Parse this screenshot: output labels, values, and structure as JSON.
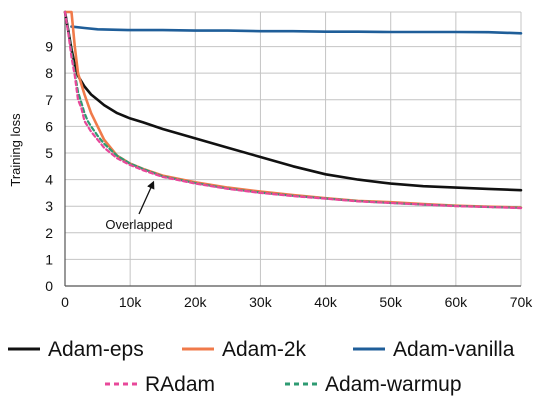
{
  "chart_data": {
    "type": "line",
    "title": "",
    "xlabel": "",
    "ylabel": "Training loss",
    "xlim": [
      0,
      70000
    ],
    "ylim": [
      0,
      10.3
    ],
    "x_ticks": [
      0,
      10000,
      20000,
      30000,
      40000,
      50000,
      60000,
      70000
    ],
    "x_tick_labels": [
      "0",
      "10k",
      "20k",
      "30k",
      "40k",
      "50k",
      "60k",
      "70k"
    ],
    "y_ticks": [
      0,
      1,
      2,
      3,
      4,
      5,
      6,
      7,
      8,
      9
    ],
    "y_tick_labels": [
      "0",
      "1",
      "2",
      "3",
      "4",
      "5",
      "6",
      "7",
      "8",
      "9"
    ],
    "grid": true,
    "legend_position": "bottom",
    "series": [
      {
        "name": "Adam-eps",
        "color": "#111111",
        "style": "solid",
        "x": [
          0,
          500,
          1000,
          1500,
          2000,
          3000,
          4000,
          5000,
          6000,
          8000,
          10000,
          12000,
          15000,
          20000,
          25000,
          30000,
          35000,
          40000,
          45000,
          50000,
          55000,
          60000,
          65000,
          70000
        ],
        "y": [
          10.3,
          9.6,
          8.9,
          8.3,
          7.9,
          7.5,
          7.2,
          7.0,
          6.8,
          6.5,
          6.3,
          6.15,
          5.9,
          5.55,
          5.2,
          4.85,
          4.5,
          4.2,
          4.0,
          3.85,
          3.75,
          3.7,
          3.65,
          3.6
        ]
      },
      {
        "name": "Adam-2k",
        "color": "#f07a4a",
        "style": "solid",
        "x": [
          0,
          1000,
          1500,
          2000,
          3000,
          4000,
          5000,
          6000,
          8000,
          10000,
          12000,
          15000,
          20000,
          25000,
          30000,
          35000,
          40000,
          45000,
          50000,
          55000,
          60000,
          65000,
          70000
        ],
        "y": [
          10.3,
          10.3,
          9.0,
          8.0,
          7.2,
          6.5,
          6.0,
          5.5,
          4.9,
          4.6,
          4.4,
          4.15,
          3.9,
          3.7,
          3.55,
          3.42,
          3.3,
          3.2,
          3.15,
          3.08,
          3.02,
          2.98,
          2.95
        ]
      },
      {
        "name": "Adam-vanilla",
        "color": "#1f5e99",
        "style": "solid",
        "x": [
          1000,
          3000,
          5000,
          10000,
          15000,
          20000,
          25000,
          30000,
          35000,
          40000,
          45000,
          50000,
          55000,
          60000,
          65000,
          70000
        ],
        "y": [
          9.75,
          9.7,
          9.65,
          9.62,
          9.62,
          9.6,
          9.6,
          9.58,
          9.58,
          9.56,
          9.56,
          9.55,
          9.55,
          9.55,
          9.54,
          9.5
        ]
      },
      {
        "name": "RAdam",
        "color": "#e8489a",
        "style": "dashed",
        "x": [
          0,
          500,
          1000,
          1500,
          2000,
          2500,
          3000,
          3500,
          4000,
          5000,
          6000,
          8000,
          10000,
          12000,
          15000,
          20000,
          25000,
          30000,
          35000,
          40000,
          45000,
          50000,
          55000,
          60000,
          65000,
          70000
        ],
        "y": [
          10.3,
          9.5,
          8.6,
          7.9,
          7.0,
          6.7,
          6.2,
          6.0,
          5.8,
          5.5,
          5.2,
          4.8,
          4.55,
          4.35,
          4.1,
          3.85,
          3.65,
          3.5,
          3.38,
          3.28,
          3.18,
          3.12,
          3.06,
          3.0,
          2.97,
          2.93
        ]
      },
      {
        "name": "Adam-warmup",
        "color": "#2e9b72",
        "style": "dashed",
        "x": [
          0,
          500,
          1000,
          1500,
          2000,
          2500,
          3000,
          3500,
          4000,
          5000,
          6000,
          8000,
          10000,
          12000,
          15000,
          20000,
          25000,
          30000,
          35000,
          40000,
          45000,
          50000,
          55000,
          60000,
          65000,
          70000
        ],
        "y": [
          10.3,
          9.6,
          8.8,
          8.0,
          7.3,
          6.9,
          6.5,
          6.2,
          6.0,
          5.65,
          5.35,
          4.9,
          4.6,
          4.4,
          4.12,
          3.87,
          3.66,
          3.51,
          3.39,
          3.29,
          3.19,
          3.12,
          3.06,
          3.01,
          2.97,
          2.94
        ]
      }
    ],
    "annotations": [
      {
        "text": "Overlapped",
        "points_to": {
          "x": 14000,
          "y": 4.0
        }
      }
    ]
  }
}
